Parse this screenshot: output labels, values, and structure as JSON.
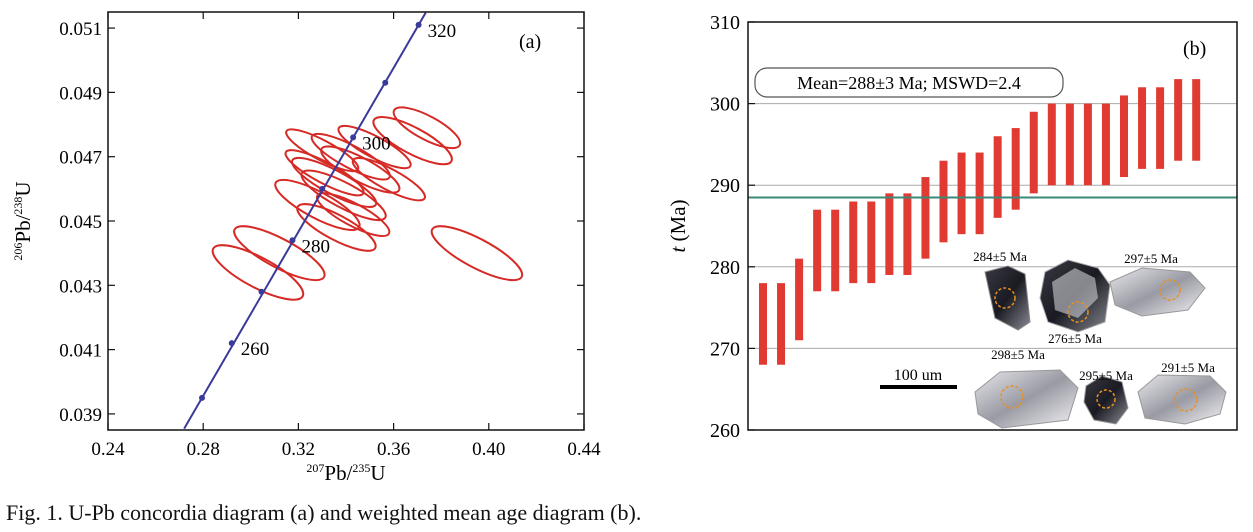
{
  "caption": "Fig. 1. U-Pb concordia diagram (a) and weighted mean age diagram (b).",
  "colors": {
    "ellipse": "#d62a26",
    "concordia": "#3a3a9a",
    "bar": "#e03a32",
    "mean_line": "#3a8a7a",
    "grid": "#aaaaaa"
  },
  "chart_data": [
    {
      "type": "scatter",
      "panel_label": "(a)",
      "xlabel_parts": [
        "207",
        "Pb/",
        "235",
        "U"
      ],
      "ylabel_parts": [
        "206",
        "Pb/",
        "238",
        "U"
      ],
      "xlim": [
        0.24,
        0.44
      ],
      "ylim": [
        0.0385,
        0.0515
      ],
      "x_ticks": [
        "0.24",
        "0.28",
        "0.32",
        "0.36",
        "0.40",
        "0.44"
      ],
      "y_ticks": [
        "0.039",
        "0.041",
        "0.043",
        "0.045",
        "0.047",
        "0.049",
        "0.051"
      ],
      "concordia": {
        "points": [
          {
            "x": 0.2795,
            "y": 0.0395
          },
          {
            "x": 0.292,
            "y": 0.0412,
            "label": "260"
          },
          {
            "x": 0.3045,
            "y": 0.0428
          },
          {
            "x": 0.3175,
            "y": 0.0444,
            "label": "280"
          },
          {
            "x": 0.33,
            "y": 0.046
          },
          {
            "x": 0.343,
            "y": 0.0476,
            "label": "300"
          },
          {
            "x": 0.3565,
            "y": 0.0493
          },
          {
            "x": 0.3705,
            "y": 0.0511,
            "label": "320"
          }
        ]
      },
      "ellipses": [
        {
          "x": 0.303,
          "y": 0.0434,
          "rx": 0.0115,
          "ry": 0.0015
        },
        {
          "x": 0.312,
          "y": 0.044,
          "rx": 0.011,
          "ry": 0.0015
        },
        {
          "x": 0.328,
          "y": 0.0455,
          "rx": 0.01,
          "ry": 0.0014
        },
        {
          "x": 0.335,
          "y": 0.0462,
          "rx": 0.009,
          "ry": 0.0014
        },
        {
          "x": 0.342,
          "y": 0.047,
          "rx": 0.0085,
          "ry": 0.0013
        },
        {
          "x": 0.331,
          "y": 0.0465,
          "rx": 0.008,
          "ry": 0.0013
        },
        {
          "x": 0.339,
          "y": 0.0458,
          "rx": 0.0095,
          "ry": 0.0014
        },
        {
          "x": 0.346,
          "y": 0.0466,
          "rx": 0.009,
          "ry": 0.0013
        },
        {
          "x": 0.352,
          "y": 0.0473,
          "rx": 0.008,
          "ry": 0.0012
        },
        {
          "x": 0.368,
          "y": 0.0475,
          "rx": 0.01,
          "ry": 0.0013
        },
        {
          "x": 0.374,
          "y": 0.0479,
          "rx": 0.009,
          "ry": 0.0011
        },
        {
          "x": 0.336,
          "y": 0.0448,
          "rx": 0.0095,
          "ry": 0.0013
        },
        {
          "x": 0.343,
          "y": 0.0452,
          "rx": 0.0085,
          "ry": 0.0012
        },
        {
          "x": 0.33,
          "y": 0.0472,
          "rx": 0.0075,
          "ry": 0.0012
        },
        {
          "x": 0.358,
          "y": 0.0463,
          "rx": 0.008,
          "ry": 0.0012
        },
        {
          "x": 0.395,
          "y": 0.044,
          "rx": 0.011,
          "ry": 0.0015
        }
      ]
    },
    {
      "type": "bar",
      "panel_label": "(b)",
      "ylabel_italic": "t",
      "ylabel_rest": " (Ma)",
      "ylim": [
        260,
        310
      ],
      "y_ticks": [
        "260",
        "270",
        "280",
        "290",
        "300",
        "310"
      ],
      "grid_y": [
        270,
        280,
        290,
        300
      ],
      "mean_value": 288.5,
      "annotation": "Mean=288±3 Ma; MSWD=2.4",
      "bars": [
        {
          "low": 268,
          "high": 278
        },
        {
          "low": 268,
          "high": 278
        },
        {
          "low": 271,
          "high": 281
        },
        {
          "low": 277,
          "high": 287
        },
        {
          "low": 277,
          "high": 287
        },
        {
          "low": 278,
          "high": 288
        },
        {
          "low": 278,
          "high": 288
        },
        {
          "low": 279,
          "high": 289
        },
        {
          "low": 279,
          "high": 289
        },
        {
          "low": 281,
          "high": 291
        },
        {
          "low": 283,
          "high": 293
        },
        {
          "low": 284,
          "high": 294
        },
        {
          "low": 284,
          "high": 294
        },
        {
          "low": 286,
          "high": 296
        },
        {
          "low": 287,
          "high": 297
        },
        {
          "low": 289,
          "high": 299
        },
        {
          "low": 290,
          "high": 300
        },
        {
          "low": 290,
          "high": 300
        },
        {
          "low": 290,
          "high": 300
        },
        {
          "low": 290,
          "high": 300
        },
        {
          "low": 291,
          "high": 301
        },
        {
          "low": 292,
          "high": 302
        },
        {
          "low": 292,
          "high": 302
        },
        {
          "low": 293,
          "high": 303
        },
        {
          "low": 293,
          "high": 303
        }
      ],
      "inset": {
        "scale_label": "100 um",
        "grains": [
          {
            "label": "284±5  Ma"
          },
          {
            "label": "276±5  Ma"
          },
          {
            "label": "297±5  Ma"
          },
          {
            "label": "298±5  Ma"
          },
          {
            "label": "295±5  Ma"
          },
          {
            "label": "291±5  Ma"
          }
        ]
      }
    }
  ]
}
